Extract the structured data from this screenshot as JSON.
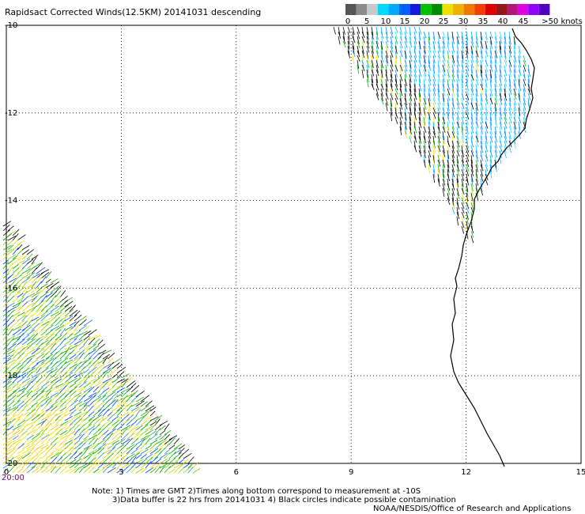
{
  "title": "Rapidsact Corrected Winds(12.5KM) 20141031 descending",
  "legend": {
    "colors": [
      "#555555",
      "#8c8c8c",
      "#c8c8c8",
      "#00d8ff",
      "#00a8ff",
      "#0060ff",
      "#1818e0",
      "#00c000",
      "#008c00",
      "#f0e000",
      "#f0b000",
      "#f07800",
      "#f04000",
      "#e00000",
      "#901818",
      "#b01878",
      "#e000e0",
      "#9000ff",
      "#5000c0"
    ],
    "labels": [
      "0",
      "5",
      "10",
      "15",
      "20",
      "25",
      "30",
      "35",
      "40",
      "45",
      ">50 knots"
    ]
  },
  "lat_labels": [
    "-10",
    "-12",
    "-14",
    "-16",
    "-18",
    "-20"
  ],
  "lon_labels": [
    "0",
    "3",
    "6",
    "9",
    "12",
    "15"
  ],
  "time_label": "20:00",
  "notes": {
    "line1": "Note: 1) Times are GMT 2)Times along bottom correspond to measurement at -10S",
    "line2": "3)Data buffer is 22 hrs from 20141031 4) Black circles indicate possible contamination",
    "line3": "NOAA/NESDIS/Office of Research and Applications"
  }
}
